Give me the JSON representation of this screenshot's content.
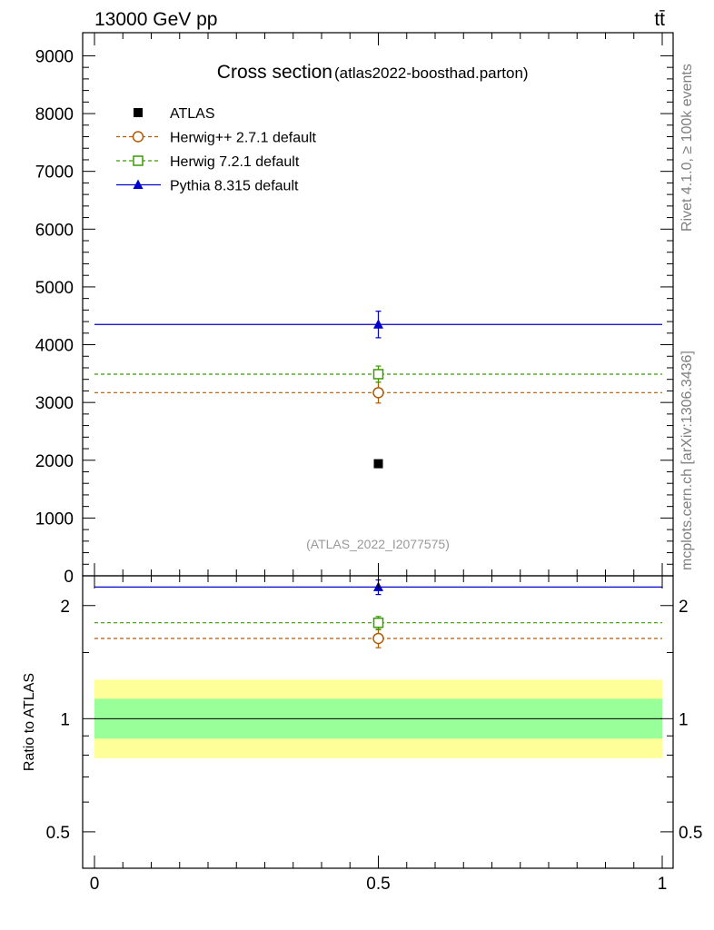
{
  "header": {
    "energy_label": "13000 GeV pp",
    "process_label": "tt̄"
  },
  "side_labels": {
    "rivet": "Rivet 4.1.0, ≥ 100k events",
    "mcplots": "mcplots.cern.ch [arXiv:1306.3436]"
  },
  "colors": {
    "atlas": "#000000",
    "herwigpp": "#b35900",
    "herwig7": "#3a9a00",
    "pythia": "#0000cc",
    "band_inner": "#99ff99",
    "band_outer": "#ffff99"
  },
  "chart_data": [
    {
      "type": "scatter",
      "panel": "main",
      "title": "Cross section",
      "subtitle": "(atlas2022-boosthad.parton)",
      "watermark": "(ATLAS_2022_I2077575)",
      "xlim": [
        0,
        1
      ],
      "ylim": [
        0,
        9400
      ],
      "yticks": [
        0,
        1000,
        2000,
        3000,
        4000,
        5000,
        6000,
        7000,
        8000,
        9000
      ],
      "ytick_labels": [
        "0",
        "1000",
        "2000",
        "3000",
        "4000",
        "5000",
        "6000",
        "7000",
        "8000",
        "9000"
      ],
      "legend_position": "top-left",
      "series": [
        {
          "name": "ATLAS",
          "marker": "square-filled",
          "line": "none",
          "color": "#000000",
          "x": 0.5,
          "y": 1940,
          "err": 0
        },
        {
          "name": "Herwig++ 2.7.1 default",
          "marker": "circle-open",
          "line": "dashed",
          "color": "#b35900",
          "x": 0.5,
          "y": 3170,
          "err": 180
        },
        {
          "name": "Herwig 7.2.1 default",
          "marker": "square-open",
          "line": "dashed",
          "color": "#3a9a00",
          "x": 0.5,
          "y": 3490,
          "err": 140
        },
        {
          "name": "Pythia 8.315 default",
          "marker": "triangle-filled",
          "line": "solid",
          "color": "#0000cc",
          "x": 0.5,
          "y": 4350,
          "err": 230
        }
      ]
    },
    {
      "type": "scatter",
      "panel": "ratio",
      "ylabel": "Ratio to ATLAS",
      "yscale": "log",
      "xlim": [
        0,
        1
      ],
      "ylim": [
        0.4,
        2.4
      ],
      "yticks": [
        0.5,
        1,
        2
      ],
      "ytick_labels": [
        "0.5",
        "1",
        "2"
      ],
      "xticks": [
        0,
        0.5,
        1
      ],
      "xtick_labels": [
        "0",
        "0.5",
        "1"
      ],
      "reference_line": 1,
      "bands": [
        {
          "name": "outer",
          "low": 0.785,
          "high": 1.27,
          "color": "#ffff99"
        },
        {
          "name": "inner",
          "low": 0.885,
          "high": 1.13,
          "color": "#99ff99"
        }
      ],
      "series": [
        {
          "name": "Herwig++ 2.7.1 default",
          "marker": "circle-open",
          "line": "dashed",
          "color": "#b35900",
          "x": 0.5,
          "y": 1.635,
          "err": 0.09
        },
        {
          "name": "Herwig 7.2.1 default",
          "marker": "square-open",
          "line": "dashed",
          "color": "#3a9a00",
          "x": 0.5,
          "y": 1.8,
          "err": 0.07
        },
        {
          "name": "Pythia 8.315 default",
          "marker": "triangle-filled",
          "line": "solid",
          "color": "#0000cc",
          "x": 0.5,
          "y": 2.24,
          "err": 0.1
        }
      ]
    }
  ]
}
